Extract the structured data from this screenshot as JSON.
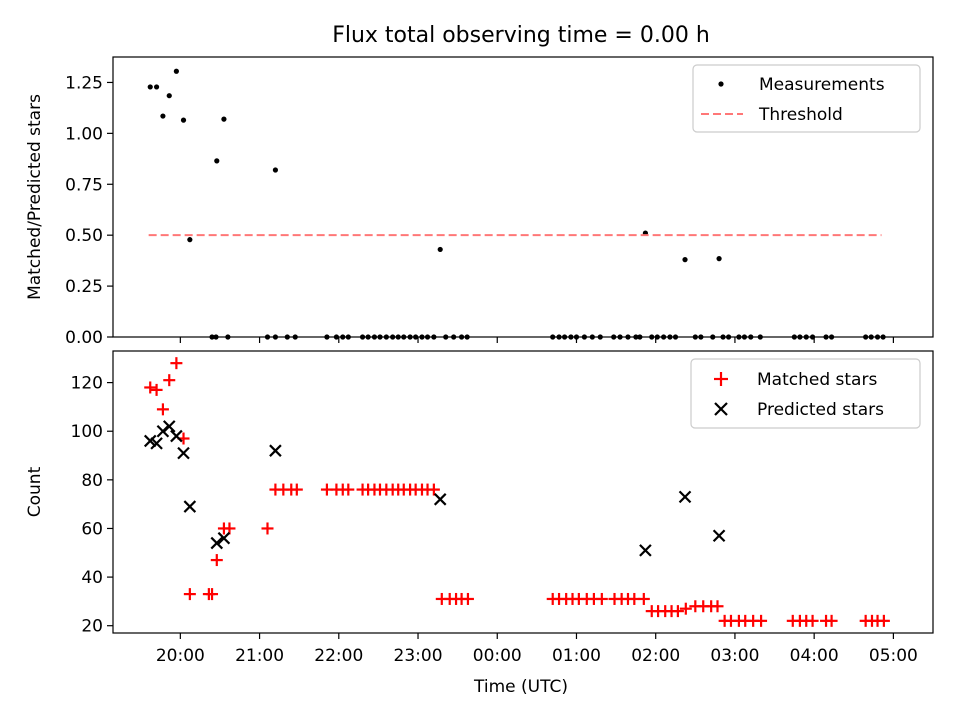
{
  "chart_data": [
    {
      "type": "scatter",
      "title": "Flux total observing time = 0.00 h",
      "xlabel": "",
      "ylabel": "Matched/Predicted stars",
      "xlim": [
        19.15,
        29.5
      ],
      "ylim": [
        0.0,
        1.375
      ],
      "yticks": [
        0.0,
        0.25,
        0.5,
        0.75,
        1.0,
        1.25
      ],
      "ytick_labels": [
        "0.00",
        "0.25",
        "0.50",
        "0.75",
        "1.00",
        "1.25"
      ],
      "legend": "top-right",
      "series": [
        {
          "name": "Measurements",
          "marker": "dot",
          "color": "#000000",
          "x": [
            19.62,
            19.7,
            19.78,
            19.86,
            19.95,
            20.04,
            20.12,
            20.46,
            20.55,
            21.2,
            23.28,
            25.87,
            26.37,
            26.8,
            20.4,
            20.45,
            20.6,
            21.1,
            21.2,
            21.35,
            21.45,
            21.85,
            21.97,
            22.05,
            22.12,
            22.3,
            22.37,
            22.45,
            22.52,
            22.6,
            22.68,
            22.75,
            22.82,
            22.9,
            22.97,
            23.05,
            23.12,
            23.2,
            23.35,
            23.45,
            23.55,
            23.62,
            24.7,
            24.78,
            24.85,
            24.93,
            25.0,
            25.1,
            25.2,
            25.3,
            25.47,
            25.55,
            25.65,
            25.75,
            25.8,
            25.95,
            26.02,
            26.1,
            26.18,
            26.25,
            26.5,
            26.57,
            26.72,
            26.85,
            26.92,
            27.05,
            27.12,
            27.2,
            27.32,
            27.75,
            27.82,
            27.9,
            27.98,
            28.15,
            28.22,
            28.65,
            28.72,
            28.8,
            28.87
          ],
          "y": [
            1.228,
            1.228,
            1.085,
            1.185,
            1.305,
            1.065,
            0.478,
            0.865,
            1.07,
            0.82,
            0.43,
            0.51,
            0.38,
            0.385,
            0,
            0,
            0,
            0,
            0,
            0,
            0,
            0,
            0,
            0,
            0,
            0,
            0,
            0,
            0,
            0,
            0,
            0,
            0,
            0,
            0,
            0,
            0,
            0,
            0,
            0,
            0,
            0,
            0,
            0,
            0,
            0,
            0,
            0,
            0,
            0,
            0,
            0,
            0,
            0,
            0,
            0,
            0,
            0,
            0,
            0,
            0,
            0,
            0,
            0,
            0,
            0,
            0,
            0,
            0,
            0,
            0,
            0,
            0,
            0,
            0,
            0,
            0,
            0,
            0
          ]
        },
        {
          "name": "Threshold",
          "marker": "dashed-line",
          "color": "#ff7777",
          "x": [
            19.6,
            28.85
          ],
          "y": [
            0.5,
            0.5
          ]
        }
      ]
    },
    {
      "type": "scatter",
      "title": "",
      "xlabel": "Time (UTC)",
      "ylabel": "Count",
      "xlim": [
        19.15,
        29.5
      ],
      "ylim": [
        17,
        133
      ],
      "yticks": [
        20,
        40,
        60,
        80,
        100,
        120
      ],
      "ytick_labels": [
        "20",
        "40",
        "60",
        "80",
        "100",
        "120"
      ],
      "xticks": [
        20,
        21,
        22,
        23,
        24,
        25,
        26,
        27,
        28,
        29
      ],
      "xtick_labels": [
        "20:00",
        "21:00",
        "22:00",
        "23:00",
        "00:00",
        "01:00",
        "02:00",
        "03:00",
        "04:00",
        "05:00"
      ],
      "legend": "top-right",
      "series": [
        {
          "name": "Matched stars",
          "marker": "plus",
          "color": "#ff0000",
          "x": [
            19.62,
            19.7,
            19.78,
            19.86,
            19.95,
            20.04,
            20.12,
            20.36,
            20.4,
            20.46,
            20.55,
            20.62,
            21.1,
            21.2,
            21.3,
            21.4,
            21.47,
            21.85,
            21.97,
            22.05,
            22.12,
            22.3,
            22.37,
            22.45,
            22.52,
            22.6,
            22.68,
            22.75,
            22.82,
            22.9,
            22.97,
            23.05,
            23.12,
            23.2,
            23.3,
            23.4,
            23.48,
            23.55,
            23.63,
            24.7,
            24.78,
            24.87,
            24.95,
            25.03,
            25.13,
            25.22,
            25.32,
            25.48,
            25.57,
            25.65,
            25.73,
            25.85,
            25.95,
            26.03,
            26.12,
            26.2,
            26.28,
            26.38,
            26.5,
            26.6,
            26.7,
            26.78,
            26.87,
            26.95,
            27.05,
            27.13,
            27.23,
            27.33,
            27.73,
            27.82,
            27.9,
            27.98,
            28.15,
            28.22,
            28.65,
            28.73,
            28.8,
            28.88
          ],
          "y": [
            118,
            117,
            109,
            121,
            128,
            97,
            33,
            33,
            33,
            47,
            60,
            60,
            60,
            76,
            76,
            76,
            76,
            76,
            76,
            76,
            76,
            76,
            76,
            76,
            76,
            76,
            76,
            76,
            76,
            76,
            76,
            76,
            76,
            76,
            31,
            31,
            31,
            31,
            31,
            31,
            31,
            31,
            31,
            31,
            31,
            31,
            31,
            31,
            31,
            31,
            31,
            31,
            26,
            26,
            26,
            26,
            26,
            27,
            28,
            28,
            28,
            28,
            22,
            22,
            22,
            22,
            22,
            22,
            22,
            22,
            22,
            22,
            22,
            22,
            22,
            22,
            22,
            22
          ]
        },
        {
          "name": "Predicted stars",
          "marker": "x",
          "color": "#000000",
          "x": [
            19.62,
            19.7,
            19.78,
            19.86,
            19.95,
            20.04,
            20.12,
            20.46,
            20.55,
            21.2,
            23.28,
            25.87,
            26.37,
            26.8
          ],
          "y": [
            96,
            95,
            100,
            102,
            98,
            91,
            69,
            54,
            56,
            92,
            72,
            51,
            73,
            57
          ]
        }
      ]
    }
  ]
}
